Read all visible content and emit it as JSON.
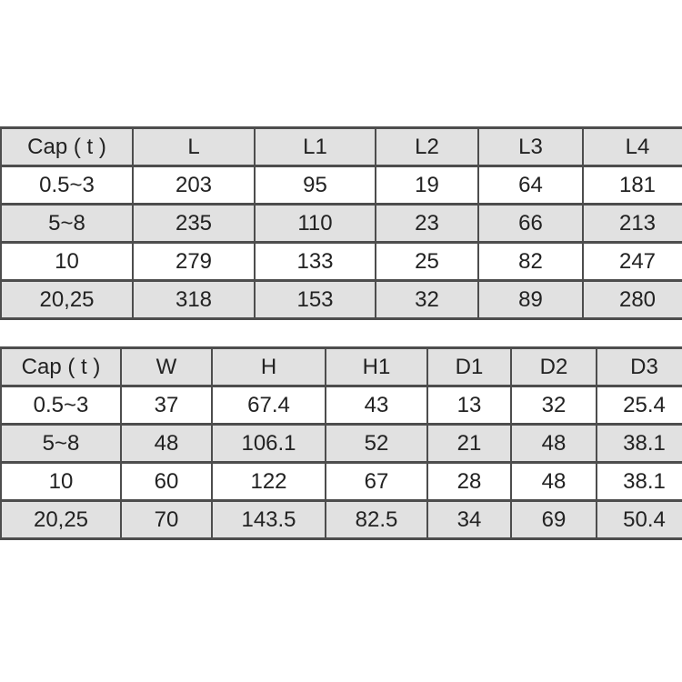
{
  "colors": {
    "page_background": "#ffffff",
    "row_shaded": "#e1e1e1",
    "row_plain": "#ffffff",
    "border": "#4d4d4d",
    "text": "#222222"
  },
  "tables": [
    {
      "name": "length-dimensions-table",
      "headers": [
        "Cap ( t )",
        "L",
        "L1",
        "L2",
        "L3",
        "L4"
      ],
      "rows": [
        [
          "0.5~3",
          "203",
          "95",
          "19",
          "64",
          "181"
        ],
        [
          "5~8",
          "235",
          "110",
          "23",
          "66",
          "213"
        ],
        [
          "10",
          "279",
          "133",
          "25",
          "82",
          "247"
        ],
        [
          "20,25",
          "318",
          "153",
          "32",
          "89",
          "280"
        ]
      ]
    },
    {
      "name": "size-dimensions-table",
      "headers": [
        "Cap ( t )",
        "W",
        "H",
        "H1",
        "D1",
        "D2",
        "D3"
      ],
      "rows": [
        [
          "0.5~3",
          "37",
          "67.4",
          "43",
          "13",
          "32",
          "25.4"
        ],
        [
          "5~8",
          "48",
          "106.1",
          "52",
          "21",
          "48",
          "38.1"
        ],
        [
          "10",
          "60",
          "122",
          "67",
          "28",
          "48",
          "38.1"
        ],
        [
          "20,25",
          "70",
          "143.5",
          "82.5",
          "34",
          "69",
          "50.4"
        ]
      ]
    }
  ]
}
